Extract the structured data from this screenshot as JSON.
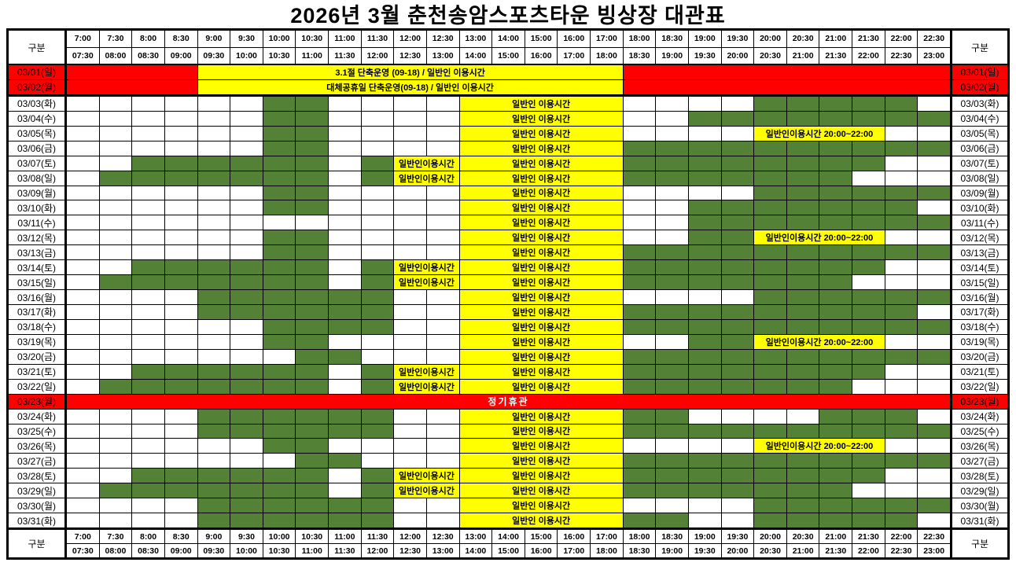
{
  "title": "2026년 3월 춘천송암스포츠타운 빙상장 대관표",
  "corner_label": "구분",
  "colors": {
    "reserved_green": "#538135",
    "public_yellow": "#ffff00",
    "closed_red": "#ff0000"
  },
  "time_slots": [
    {
      "start": "7:00",
      "end": "07:30"
    },
    {
      "start": "7:30",
      "end": "08:00"
    },
    {
      "start": "8:00",
      "end": "08:30"
    },
    {
      "start": "8:30",
      "end": "09:00"
    },
    {
      "start": "9:00",
      "end": "09:30"
    },
    {
      "start": "9:30",
      "end": "10:00"
    },
    {
      "start": "10:00",
      "end": "10:30"
    },
    {
      "start": "10:30",
      "end": "11:00"
    },
    {
      "start": "11:00",
      "end": "11:30"
    },
    {
      "start": "11:30",
      "end": "12:00"
    },
    {
      "start": "12:00",
      "end": "12:30"
    },
    {
      "start": "12:30",
      "end": "13:00"
    },
    {
      "start": "13:00",
      "end": "14:00"
    },
    {
      "start": "14:00",
      "end": "15:00"
    },
    {
      "start": "15:00",
      "end": "16:00"
    },
    {
      "start": "16:00",
      "end": "17:00"
    },
    {
      "start": "17:00",
      "end": "18:00"
    },
    {
      "start": "18:00",
      "end": "18:30"
    },
    {
      "start": "18:30",
      "end": "19:00"
    },
    {
      "start": "19:00",
      "end": "19:30"
    },
    {
      "start": "19:30",
      "end": "20:00"
    },
    {
      "start": "20:00",
      "end": "20:30"
    },
    {
      "start": "20:30",
      "end": "21:00"
    },
    {
      "start": "21:00",
      "end": "21:30"
    },
    {
      "start": "21:30",
      "end": "22:00"
    },
    {
      "start": "22:00",
      "end": "22:30"
    },
    {
      "start": "22:30",
      "end": "23:00"
    }
  ],
  "texts": {
    "public_session": "일반인 이용시간",
    "public_session_noon": "일반인이용시간",
    "public_session_evening": "일반인이용시간 20:00~22:00",
    "holiday_031": "3.1절 단축운영 (09-18) / 일반인 이용시간",
    "holiday_sub": "대체공휴일 단축운영(09-18) / 일반인 이용시간",
    "closed_day": "정기휴관"
  },
  "rows": [
    {
      "date": "03/01(일)",
      "label_red": true,
      "thick_bottom": false,
      "segments": [
        {
          "type": "red",
          "span": 4
        },
        {
          "type": "yellow",
          "span": 13,
          "text": "3.1절 단축운영 (09-18) / 일반인 이용시간"
        },
        {
          "type": "red",
          "span": 10
        }
      ]
    },
    {
      "date": "03/02(월)",
      "label_red": true,
      "thick_bottom": true,
      "segments": [
        {
          "type": "red",
          "span": 4
        },
        {
          "type": "yellow",
          "span": 13,
          "text": "대체공휴일 단축운영(09-18) / 일반인 이용시간"
        },
        {
          "type": "red",
          "span": 10
        }
      ]
    },
    {
      "date": "03/03(화)",
      "segments": [
        {
          "type": "white",
          "span": 6
        },
        {
          "type": "green",
          "span": 2
        },
        {
          "type": "white",
          "span": 4
        },
        {
          "type": "yellow",
          "span": 5,
          "text": "일반인 이용시간"
        },
        {
          "type": "white",
          "span": 4
        },
        {
          "type": "green",
          "span": 5
        },
        {
          "type": "white",
          "span": 1
        }
      ]
    },
    {
      "date": "03/04(수)",
      "segments": [
        {
          "type": "white",
          "span": 6
        },
        {
          "type": "green",
          "span": 2
        },
        {
          "type": "white",
          "span": 4
        },
        {
          "type": "yellow",
          "span": 5,
          "text": "일반인 이용시간"
        },
        {
          "type": "white",
          "span": 2
        },
        {
          "type": "green",
          "span": 8
        }
      ]
    },
    {
      "date": "03/05(목)",
      "segments": [
        {
          "type": "white",
          "span": 6
        },
        {
          "type": "green",
          "span": 2
        },
        {
          "type": "white",
          "span": 4
        },
        {
          "type": "yellow",
          "span": 5,
          "text": "일반인 이용시간"
        },
        {
          "type": "white",
          "span": 4
        },
        {
          "type": "yellow",
          "span": 4,
          "text": "일반인이용시간 20:00~22:00"
        },
        {
          "type": "white",
          "span": 2
        }
      ]
    },
    {
      "date": "03/06(금)",
      "segments": [
        {
          "type": "white",
          "span": 6
        },
        {
          "type": "green",
          "span": 2
        },
        {
          "type": "white",
          "span": 4
        },
        {
          "type": "yellow",
          "span": 5,
          "text": "일반인 이용시간"
        },
        {
          "type": "green",
          "span": 10
        }
      ]
    },
    {
      "date": "03/07(토)",
      "segments": [
        {
          "type": "white",
          "span": 2
        },
        {
          "type": "green",
          "span": 6
        },
        {
          "type": "white",
          "span": 1
        },
        {
          "type": "green",
          "span": 1
        },
        {
          "type": "yellow",
          "span": 2,
          "text": "일반인이용시간"
        },
        {
          "type": "yellow",
          "span": 5,
          "text": "일반인 이용시간"
        },
        {
          "type": "green",
          "span": 8
        },
        {
          "type": "white",
          "span": 2
        }
      ]
    },
    {
      "date": "03/08(일)",
      "segments": [
        {
          "type": "white",
          "span": 1
        },
        {
          "type": "green",
          "span": 7
        },
        {
          "type": "white",
          "span": 1
        },
        {
          "type": "green",
          "span": 1
        },
        {
          "type": "yellow",
          "span": 2,
          "text": "일반인이용시간"
        },
        {
          "type": "yellow",
          "span": 5,
          "text": "일반인 이용시간"
        },
        {
          "type": "green",
          "span": 7
        },
        {
          "type": "white",
          "span": 3
        }
      ]
    },
    {
      "date": "03/09(월)",
      "segments": [
        {
          "type": "white",
          "span": 6
        },
        {
          "type": "green",
          "span": 2
        },
        {
          "type": "white",
          "span": 4
        },
        {
          "type": "yellow",
          "span": 5,
          "text": "일반인 이용시간"
        },
        {
          "type": "white",
          "span": 4
        },
        {
          "type": "green",
          "span": 6
        }
      ]
    },
    {
      "date": "03/10(화)",
      "segments": [
        {
          "type": "white",
          "span": 6
        },
        {
          "type": "green",
          "span": 2
        },
        {
          "type": "white",
          "span": 4
        },
        {
          "type": "yellow",
          "span": 5,
          "text": "일반인 이용시간"
        },
        {
          "type": "white",
          "span": 2
        },
        {
          "type": "green",
          "span": 7
        },
        {
          "type": "white",
          "span": 1
        }
      ]
    },
    {
      "date": "03/11(수)",
      "segments": [
        {
          "type": "white",
          "span": 12
        },
        {
          "type": "yellow",
          "span": 5,
          "text": "일반인 이용시간"
        },
        {
          "type": "white",
          "span": 2
        },
        {
          "type": "green",
          "span": 8
        }
      ]
    },
    {
      "date": "03/12(목)",
      "segments": [
        {
          "type": "white",
          "span": 6
        },
        {
          "type": "green",
          "span": 2
        },
        {
          "type": "white",
          "span": 4
        },
        {
          "type": "yellow",
          "span": 5,
          "text": "일반인 이용시간"
        },
        {
          "type": "white",
          "span": 2
        },
        {
          "type": "green",
          "span": 2
        },
        {
          "type": "yellow",
          "span": 4,
          "text": "일반인이용시간 20:00~22:00"
        },
        {
          "type": "white",
          "span": 2
        }
      ]
    },
    {
      "date": "03/13(금)",
      "segments": [
        {
          "type": "white",
          "span": 6
        },
        {
          "type": "green",
          "span": 2
        },
        {
          "type": "white",
          "span": 4
        },
        {
          "type": "yellow",
          "span": 5,
          "text": "일반인 이용시간"
        },
        {
          "type": "green",
          "span": 10
        }
      ]
    },
    {
      "date": "03/14(토)",
      "segments": [
        {
          "type": "white",
          "span": 2
        },
        {
          "type": "green",
          "span": 6
        },
        {
          "type": "white",
          "span": 1
        },
        {
          "type": "green",
          "span": 1
        },
        {
          "type": "yellow",
          "span": 2,
          "text": "일반인이용시간"
        },
        {
          "type": "yellow",
          "span": 5,
          "text": "일반인 이용시간"
        },
        {
          "type": "green",
          "span": 8
        },
        {
          "type": "white",
          "span": 2
        }
      ]
    },
    {
      "date": "03/15(일)",
      "segments": [
        {
          "type": "white",
          "span": 1
        },
        {
          "type": "green",
          "span": 7
        },
        {
          "type": "white",
          "span": 1
        },
        {
          "type": "green",
          "span": 1
        },
        {
          "type": "yellow",
          "span": 2,
          "text": "일반인이용시간"
        },
        {
          "type": "yellow",
          "span": 5,
          "text": "일반인 이용시간"
        },
        {
          "type": "green",
          "span": 7
        },
        {
          "type": "white",
          "span": 3
        }
      ]
    },
    {
      "date": "03/16(월)",
      "segments": [
        {
          "type": "white",
          "span": 4
        },
        {
          "type": "green",
          "span": 6
        },
        {
          "type": "white",
          "span": 2
        },
        {
          "type": "yellow",
          "span": 5,
          "text": "일반인 이용시간"
        },
        {
          "type": "white",
          "span": 4
        },
        {
          "type": "green",
          "span": 6
        }
      ]
    },
    {
      "date": "03/17(화)",
      "segments": [
        {
          "type": "white",
          "span": 4
        },
        {
          "type": "green",
          "span": 6
        },
        {
          "type": "white",
          "span": 2
        },
        {
          "type": "yellow",
          "span": 5,
          "text": "일반인 이용시간"
        },
        {
          "type": "green",
          "span": 9
        },
        {
          "type": "white",
          "span": 1
        }
      ]
    },
    {
      "date": "03/18(수)",
      "segments": [
        {
          "type": "white",
          "span": 6
        },
        {
          "type": "green",
          "span": 4
        },
        {
          "type": "white",
          "span": 2
        },
        {
          "type": "yellow",
          "span": 5,
          "text": "일반인 이용시간"
        },
        {
          "type": "green",
          "span": 10
        }
      ]
    },
    {
      "date": "03/19(목)",
      "segments": [
        {
          "type": "white",
          "span": 6
        },
        {
          "type": "green",
          "span": 2
        },
        {
          "type": "white",
          "span": 4
        },
        {
          "type": "yellow",
          "span": 5,
          "text": "일반인 이용시간"
        },
        {
          "type": "white",
          "span": 2
        },
        {
          "type": "green",
          "span": 2
        },
        {
          "type": "yellow",
          "span": 4,
          "text": "일반인이용시간 20:00~22:00"
        },
        {
          "type": "white",
          "span": 2
        }
      ]
    },
    {
      "date": "03/20(금)",
      "segments": [
        {
          "type": "white",
          "span": 7
        },
        {
          "type": "green",
          "span": 2
        },
        {
          "type": "white",
          "span": 3
        },
        {
          "type": "yellow",
          "span": 5,
          "text": "일반인 이용시간"
        },
        {
          "type": "green",
          "span": 10
        }
      ]
    },
    {
      "date": "03/21(토)",
      "segments": [
        {
          "type": "white",
          "span": 2
        },
        {
          "type": "green",
          "span": 6
        },
        {
          "type": "white",
          "span": 1
        },
        {
          "type": "green",
          "span": 1
        },
        {
          "type": "yellow",
          "span": 2,
          "text": "일반인이용시간"
        },
        {
          "type": "yellow",
          "span": 5,
          "text": "일반인 이용시간"
        },
        {
          "type": "green",
          "span": 8
        },
        {
          "type": "white",
          "span": 2
        }
      ]
    },
    {
      "date": "03/22(일)",
      "segments": [
        {
          "type": "white",
          "span": 1
        },
        {
          "type": "green",
          "span": 7
        },
        {
          "type": "white",
          "span": 1
        },
        {
          "type": "green",
          "span": 1
        },
        {
          "type": "yellow",
          "span": 2,
          "text": "일반인이용시간"
        },
        {
          "type": "yellow",
          "span": 5,
          "text": "일반인 이용시간"
        },
        {
          "type": "green",
          "span": 7
        },
        {
          "type": "white",
          "span": 3
        }
      ]
    },
    {
      "date": "03/23(월)",
      "label_red": true,
      "segments": [
        {
          "type": "red",
          "span": 27,
          "text": "정기휴관"
        }
      ]
    },
    {
      "date": "03/24(화)",
      "segments": [
        {
          "type": "white",
          "span": 4
        },
        {
          "type": "green",
          "span": 6
        },
        {
          "type": "white",
          "span": 2
        },
        {
          "type": "yellow",
          "span": 5,
          "text": "일반인 이용시간"
        },
        {
          "type": "green",
          "span": 2
        },
        {
          "type": "white",
          "span": 4
        },
        {
          "type": "green",
          "span": 3
        },
        {
          "type": "white",
          "span": 1
        }
      ]
    },
    {
      "date": "03/25(수)",
      "segments": [
        {
          "type": "white",
          "span": 4
        },
        {
          "type": "green",
          "span": 6
        },
        {
          "type": "white",
          "span": 2
        },
        {
          "type": "yellow",
          "span": 5,
          "text": "일반인 이용시간"
        },
        {
          "type": "green",
          "span": 10
        }
      ]
    },
    {
      "date": "03/26(목)",
      "segments": [
        {
          "type": "white",
          "span": 6
        },
        {
          "type": "green",
          "span": 2
        },
        {
          "type": "white",
          "span": 4
        },
        {
          "type": "yellow",
          "span": 5,
          "text": "일반인 이용시간"
        },
        {
          "type": "white",
          "span": 4
        },
        {
          "type": "yellow",
          "span": 4,
          "text": "일반인이용시간 20:00~22:00"
        },
        {
          "type": "white",
          "span": 2
        }
      ]
    },
    {
      "date": "03/27(금)",
      "segments": [
        {
          "type": "white",
          "span": 7
        },
        {
          "type": "green",
          "span": 2
        },
        {
          "type": "white",
          "span": 3
        },
        {
          "type": "yellow",
          "span": 5,
          "text": "일반인 이용시간"
        },
        {
          "type": "green",
          "span": 10
        }
      ]
    },
    {
      "date": "03/28(토)",
      "segments": [
        {
          "type": "white",
          "span": 2
        },
        {
          "type": "green",
          "span": 6
        },
        {
          "type": "white",
          "span": 1
        },
        {
          "type": "green",
          "span": 1
        },
        {
          "type": "yellow",
          "span": 2,
          "text": "일반인이용시간"
        },
        {
          "type": "yellow",
          "span": 5,
          "text": "일반인 이용시간"
        },
        {
          "type": "green",
          "span": 8
        },
        {
          "type": "white",
          "span": 2
        }
      ]
    },
    {
      "date": "03/29(일)",
      "segments": [
        {
          "type": "white",
          "span": 1
        },
        {
          "type": "green",
          "span": 7
        },
        {
          "type": "white",
          "span": 1
        },
        {
          "type": "green",
          "span": 1
        },
        {
          "type": "yellow",
          "span": 2,
          "text": "일반인이용시간"
        },
        {
          "type": "yellow",
          "span": 5,
          "text": "일반인 이용시간"
        },
        {
          "type": "green",
          "span": 7
        },
        {
          "type": "white",
          "span": 3
        }
      ]
    },
    {
      "date": "03/30(월)",
      "segments": [
        {
          "type": "white",
          "span": 4
        },
        {
          "type": "green",
          "span": 6
        },
        {
          "type": "white",
          "span": 2
        },
        {
          "type": "yellow",
          "span": 5,
          "text": "일반인 이용시간"
        },
        {
          "type": "white",
          "span": 4
        },
        {
          "type": "green",
          "span": 6
        }
      ]
    },
    {
      "date": "03/31(화)",
      "segments": [
        {
          "type": "white",
          "span": 4
        },
        {
          "type": "green",
          "span": 6
        },
        {
          "type": "white",
          "span": 2
        },
        {
          "type": "yellow",
          "span": 5,
          "text": "일반인 이용시간"
        },
        {
          "type": "green",
          "span": 2
        },
        {
          "type": "white",
          "span": 2
        },
        {
          "type": "green",
          "span": 5
        },
        {
          "type": "white",
          "span": 1
        }
      ]
    }
  ]
}
